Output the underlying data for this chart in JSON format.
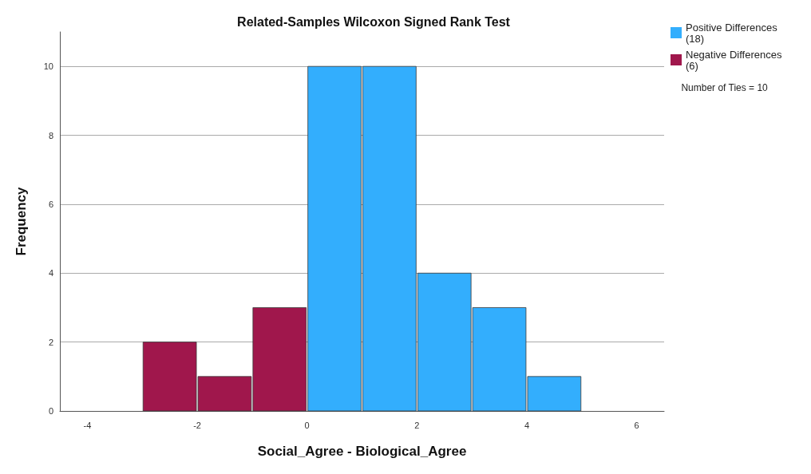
{
  "chart_data": {
    "type": "histogram",
    "title": "Related-Samples Wilcoxon Signed Rank Test",
    "xlabel": "Social_Agree - Biological_Agree",
    "ylabel": "Frequency",
    "bins": [
      -3,
      -2,
      -1,
      0,
      1,
      2,
      3,
      4,
      5
    ],
    "series": [
      {
        "name": "Positive Differences (18)",
        "color": "#33aefd",
        "values": [
          null,
          null,
          null,
          10,
          10,
          4,
          3,
          1
        ]
      },
      {
        "name": "Negative Differences (6)",
        "color": "#a0174c",
        "values": [
          2,
          1,
          3,
          null,
          null,
          null,
          null,
          null
        ]
      }
    ],
    "xlim": [
      -4.5,
      6.5
    ],
    "xticks": [
      -4,
      -2,
      0,
      2,
      4,
      6
    ],
    "ylim": [
      0,
      11
    ],
    "yticks": [
      0,
      2,
      4,
      6,
      8,
      10
    ],
    "grid": "y",
    "legend": "top right",
    "annotations": [
      "Number of Ties = 10"
    ]
  }
}
